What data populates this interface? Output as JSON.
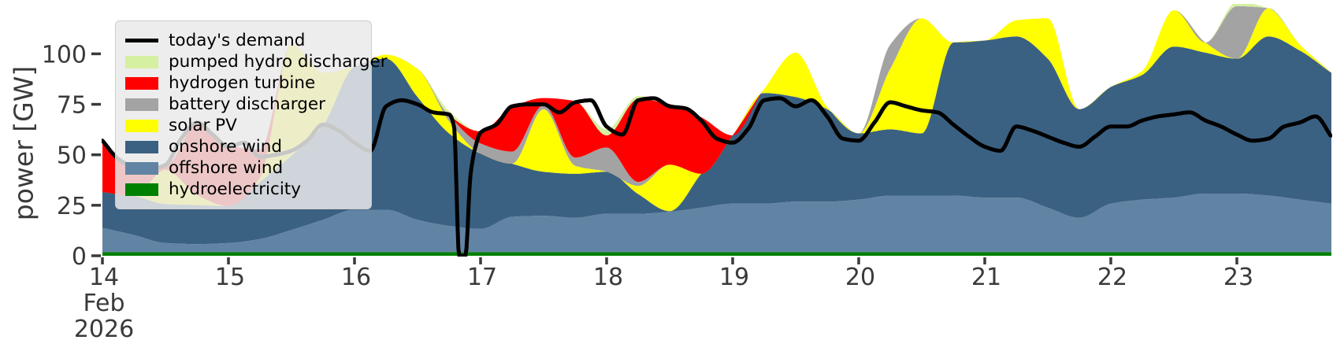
{
  "chart_data": {
    "type": "area",
    "title": "",
    "ylabel": "power [GW]",
    "text_color": "#3a3a3a",
    "xlim": [
      14,
      23.75
    ],
    "ylim": [
      0,
      123.5
    ],
    "grid": false,
    "legend_position": "upper-left",
    "x_axis": {
      "tick_days": [
        14,
        15,
        16,
        17,
        18,
        19,
        20,
        21,
        22,
        23
      ],
      "tick_labels": [
        "14",
        "15",
        "16",
        "17",
        "18",
        "19",
        "20",
        "21",
        "22",
        "23"
      ],
      "first_tick_sublabels": [
        "Feb",
        "2026"
      ]
    },
    "y_axis": {
      "ticks": [
        0,
        25,
        50,
        75,
        100
      ],
      "tick_labels": [
        "0",
        "25",
        "50",
        "75",
        "100"
      ]
    },
    "x_areas": [
      14.0,
      14.25,
      14.5,
      14.75,
      15.0,
      15.25,
      15.5,
      15.75,
      16.0,
      16.25,
      16.5,
      16.75,
      17.0,
      17.25,
      17.5,
      17.75,
      18.0,
      18.25,
      18.5,
      18.75,
      19.0,
      19.25,
      19.5,
      19.75,
      20.0,
      20.25,
      20.5,
      20.75,
      21.0,
      21.25,
      21.5,
      21.75,
      22.0,
      22.25,
      22.5,
      22.75,
      23.0,
      23.25,
      23.5,
      23.75
    ],
    "stacked_series": [
      {
        "name": "hydroelectricity",
        "color": "#008000",
        "values": [
          1.8,
          1.8,
          1.8,
          1.8,
          1.8,
          1.8,
          1.8,
          1.8,
          1.8,
          1.8,
          1.8,
          1.8,
          1.8,
          1.8,
          1.8,
          1.8,
          1.8,
          1.8,
          1.8,
          1.8,
          1.8,
          1.8,
          1.8,
          1.8,
          1.8,
          1.8,
          1.8,
          1.8,
          1.8,
          1.8,
          1.8,
          1.8,
          1.8,
          1.8,
          1.8,
          1.8,
          1.8,
          1.8,
          1.8,
          1.8
        ]
      },
      {
        "name": "offshore wind",
        "color": "#6284a4",
        "values": [
          12,
          8.5,
          4.5,
          4,
          4.5,
          6.5,
          11,
          16,
          21,
          21,
          16,
          13,
          11.5,
          17.5,
          18,
          17,
          19,
          19,
          20,
          22,
          24,
          24,
          25,
          25,
          26,
          28,
          28,
          28,
          27,
          27,
          22,
          17,
          24,
          26,
          27,
          29,
          29,
          28,
          26,
          24
        ]
      },
      {
        "name": "onshore wind",
        "color": "#3b6182",
        "values": [
          17.8,
          19.3,
          19.3,
          19.3,
          18.3,
          28.3,
          36.8,
          46.8,
          70.8,
          74.8,
          60.8,
          45.8,
          37.3,
          26.3,
          21.8,
          21.8,
          20.8,
          9.8,
          0.3,
          16.8,
          33.8,
          54.8,
          51.8,
          45.8,
          32.8,
          32.8,
          30.8,
          75.8,
          77.8,
          79.8,
          73.8,
          53.8,
          57.8,
          61.8,
          74.8,
          69.8,
          66.8,
          78.8,
          73.8,
          64.8
        ]
      },
      {
        "name": "solar PV",
        "color": "#ffff00",
        "values": [
          0,
          0,
          17,
          5,
          0,
          2,
          55,
          26,
          0,
          2,
          14,
          6,
          0,
          0,
          31,
          4,
          0,
          4,
          23,
          0,
          0,
          2,
          22,
          1,
          0,
          30,
          57,
          0,
          0,
          8,
          20,
          0,
          0,
          2,
          18,
          5,
          0,
          14,
          3,
          0
        ]
      },
      {
        "name": "battery discharger",
        "color": "#a3a3a3",
        "values": [
          0,
          0,
          0,
          0,
          0,
          0,
          0,
          0,
          0,
          0,
          0,
          3,
          5,
          6,
          2,
          4,
          12,
          2,
          0,
          0,
          0,
          0,
          0,
          0,
          0,
          12,
          0,
          0,
          0,
          0,
          0,
          0,
          0,
          0,
          0,
          0,
          26,
          0,
          0,
          0
        ]
      },
      {
        "name": "hydrogen turbine",
        "color": "#ff0000",
        "values": [
          24,
          15,
          2,
          35,
          30,
          14,
          0,
          0,
          0,
          0,
          0,
          0,
          6,
          22,
          3.5,
          28,
          6,
          41,
          30,
          28,
          0,
          0,
          0,
          0,
          0,
          0,
          0,
          0,
          0,
          0,
          0,
          0,
          0,
          0,
          0,
          0,
          0,
          0,
          0,
          0
        ]
      },
      {
        "name": "pumped hydro discharger",
        "color": "#d5f0a1",
        "values": [
          0,
          0,
          0,
          1.5,
          0,
          0,
          0,
          0,
          0,
          0,
          0,
          2,
          0,
          0,
          0,
          0,
          3,
          1.5,
          0,
          0,
          0,
          0,
          0,
          0,
          0,
          0,
          0,
          0,
          0,
          0,
          0,
          0,
          0,
          0,
          0,
          0,
          2,
          0,
          0,
          0
        ]
      }
    ],
    "demand_line": {
      "name": "today's demand",
      "color": "#000000",
      "x": [
        14.0,
        14.125,
        14.25,
        14.375,
        14.5,
        14.625,
        14.75,
        14.875,
        15.0,
        15.125,
        15.25,
        15.375,
        15.5,
        15.625,
        15.75,
        15.875,
        16.0,
        16.125,
        16.25,
        16.375,
        16.5,
        16.625,
        16.75,
        16.79,
        16.83,
        16.88,
        16.92,
        16.96,
        17.0,
        17.125,
        17.25,
        17.375,
        17.5,
        17.625,
        17.75,
        17.875,
        18.0,
        18.125,
        18.25,
        18.375,
        18.5,
        18.625,
        18.75,
        18.875,
        19.0,
        19.125,
        19.25,
        19.375,
        19.5,
        19.625,
        19.75,
        19.875,
        20.0,
        20.125,
        20.25,
        20.375,
        20.5,
        20.625,
        20.75,
        20.875,
        21.0,
        21.125,
        21.25,
        21.375,
        21.5,
        21.625,
        21.75,
        21.875,
        22.0,
        22.125,
        22.25,
        22.375,
        22.5,
        22.625,
        22.75,
        22.875,
        23.0,
        23.125,
        23.25,
        23.375,
        23.5,
        23.625,
        23.75
      ],
      "y": [
        57,
        48,
        44,
        43,
        45,
        58,
        66,
        60,
        54,
        56,
        49,
        50,
        52,
        57,
        65,
        62,
        56,
        52,
        74,
        77,
        75,
        71,
        70,
        64,
        0,
        0,
        40,
        54,
        61,
        65,
        74,
        75,
        75,
        71,
        76,
        77,
        64,
        60,
        77,
        78,
        74,
        73,
        67,
        58,
        56,
        63,
        77,
        78,
        74,
        77,
        69,
        58,
        57,
        66,
        76,
        74,
        72,
        71,
        65,
        59,
        54,
        52,
        64,
        62,
        59,
        56,
        54,
        59,
        64,
        64,
        67,
        69,
        70,
        71,
        67,
        64,
        60,
        57,
        58,
        64,
        66,
        69,
        59
      ]
    },
    "legend": [
      {
        "label": "today's demand",
        "type": "line",
        "color": "#000000"
      },
      {
        "label": "pumped hydro discharger",
        "type": "patch",
        "color": "#d5f0a1"
      },
      {
        "label": "hydrogen turbine",
        "type": "patch",
        "color": "#ff0000"
      },
      {
        "label": "battery discharger",
        "type": "patch",
        "color": "#a3a3a3"
      },
      {
        "label": "solar PV",
        "type": "patch",
        "color": "#ffff00"
      },
      {
        "label": "onshore wind",
        "type": "patch",
        "color": "#3b6182"
      },
      {
        "label": "offshore wind",
        "type": "patch",
        "color": "#6284a4"
      },
      {
        "label": "hydroelectricity",
        "type": "patch",
        "color": "#008000"
      }
    ]
  }
}
